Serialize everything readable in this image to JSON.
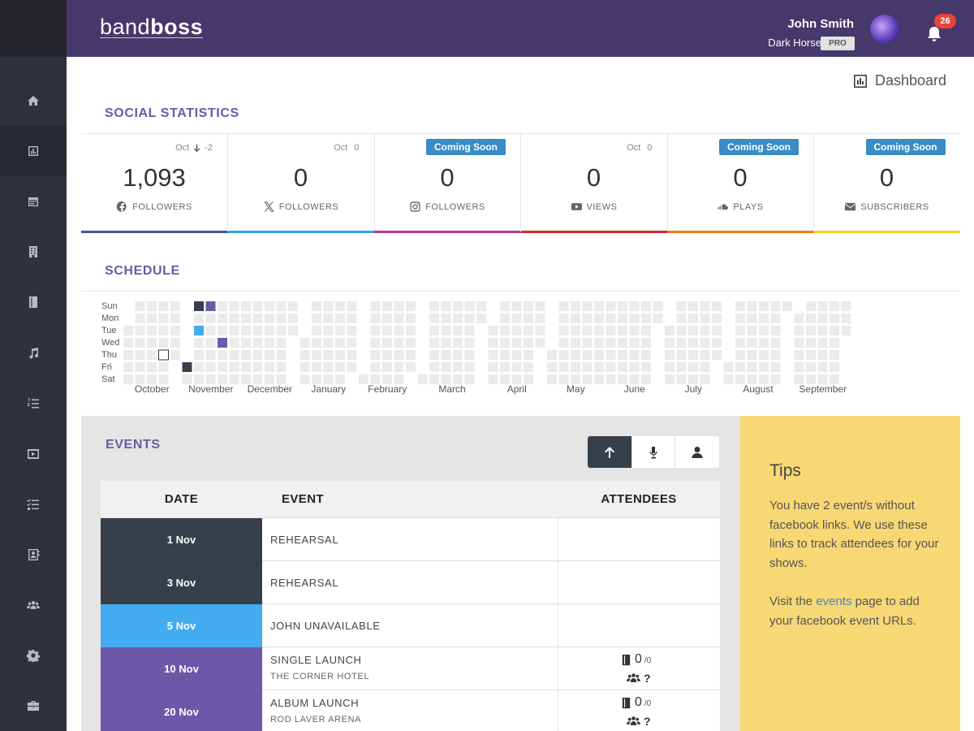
{
  "header": {
    "logo_prefix": "band",
    "logo_suffix": "boss",
    "user_name": "John Smith",
    "band_name": "Dark Horse",
    "plan": "PRO",
    "notification_count": "26"
  },
  "page_title": "Dashboard",
  "social": {
    "title": "SOCIAL STATISTICS",
    "cards": [
      {
        "month": "Oct",
        "change": "-2",
        "value": "1,093",
        "label": "FOLLOWERS",
        "color": "#3b5998"
      },
      {
        "month": "Oct",
        "change": "0",
        "value": "0",
        "label": "FOLLOWERS",
        "color": "#2aa3ef"
      },
      {
        "badge": "Coming Soon",
        "value": "0",
        "label": "FOLLOWERS",
        "color": "#b5359a"
      },
      {
        "month": "Oct",
        "change": "0",
        "value": "0",
        "label": "VIEWS",
        "color": "#d9262c"
      },
      {
        "badge": "Coming Soon",
        "value": "0",
        "label": "PLAYS",
        "color": "#f07c1c"
      },
      {
        "badge": "Coming Soon",
        "value": "0",
        "label": "SUBSCRIBERS",
        "color": "#f5d423"
      }
    ]
  },
  "schedule": {
    "title": "SCHEDULE",
    "days": [
      "Sun",
      "Mon",
      "Tue",
      "Wed",
      "Thu",
      "Fri",
      "Sat"
    ],
    "months": [
      "October",
      "November",
      "December",
      "January",
      "February",
      "March",
      "April",
      "May",
      "June",
      "July",
      "August",
      "September"
    ]
  },
  "events": {
    "title": "EVENTS",
    "columns": [
      "DATE",
      "EVENT",
      "ATTENDEES"
    ],
    "rows": [
      {
        "date": "1 Nov",
        "event": "REHEARSAL",
        "color": "#37404a"
      },
      {
        "date": "3 Nov",
        "event": "REHEARSAL",
        "color": "#37404a"
      },
      {
        "date": "5 Nov",
        "event": "JOHN UNAVAILABLE",
        "color": "#43acf0"
      },
      {
        "date": "10 Nov",
        "event": "SINGLE LAUNCH",
        "venue": "THE CORNER HOTEL",
        "color": "#6c58a9",
        "tickets": "0",
        "capacity": "/0",
        "attendees": "?"
      },
      {
        "date": "20 Nov",
        "event": "ALBUM LAUNCH",
        "venue": "ROD LAVER ARENA",
        "color": "#6c58a9",
        "tickets": "0",
        "capacity": "/0",
        "attendees": "?"
      }
    ]
  },
  "tips": {
    "title": "Tips",
    "paragraph_1": "You have 2 event/s without facebook links. We use these links to track attendees for your shows.",
    "paragraph_2_before": "Visit the ",
    "paragraph_2_link": "events",
    "paragraph_2_after": " page to add your facebook event URLs."
  }
}
